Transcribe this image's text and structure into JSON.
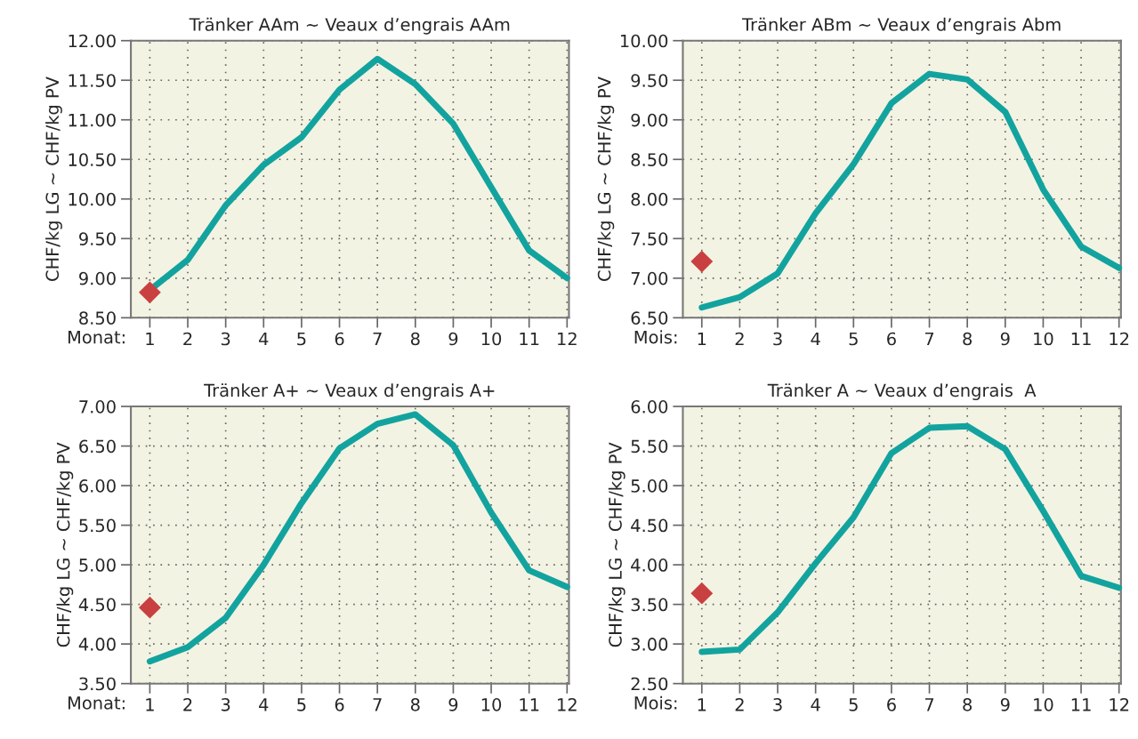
{
  "chart_data": [
    {
      "type": "line",
      "title": "Tränker AAm ~ Veaux d’engrais AAm",
      "xlabel": "Monat:",
      "ylabel": "CHF/kg LG ~ CHF/kg PV",
      "categories": [
        "1",
        "2",
        "3",
        "4",
        "5",
        "6",
        "7",
        "8",
        "9",
        "10",
        "11",
        "12"
      ],
      "series": [
        {
          "color": "#13a39f",
          "values": [
            8.85,
            9.23,
            9.92,
            10.43,
            10.78,
            11.38,
            11.77,
            11.45,
            10.95,
            10.15,
            9.35,
            9.0
          ]
        },
        {
          "type": "scatter",
          "color": "#c94040",
          "marker": "diamond",
          "x": [
            "1"
          ],
          "values": [
            8.82
          ]
        }
      ],
      "ylim": [
        8.5,
        12.0
      ],
      "yticks": [
        {
          "value": 8.5,
          "label": "8.50"
        },
        {
          "value": 9.0,
          "label": "9.00"
        },
        {
          "value": 9.5,
          "label": "9.50"
        },
        {
          "value": 10.0,
          "label": "10.00"
        },
        {
          "value": 10.5,
          "label": "10.50"
        },
        {
          "value": 11.0,
          "label": "11.00"
        },
        {
          "value": 11.5,
          "label": "11.50"
        },
        {
          "value": 12.0,
          "label": "12.00"
        }
      ],
      "grid": true,
      "legend": false
    },
    {
      "type": "line",
      "title": "Tränker ABm ~ Veaux d’engrais Abm",
      "xlabel": "Mois:",
      "ylabel": "CHF/kg LG ~ CHF/kg PV",
      "categories": [
        "1",
        "2",
        "3",
        "4",
        "5",
        "6",
        "7",
        "8",
        "9",
        "10",
        "11",
        "12"
      ],
      "series": [
        {
          "color": "#13a39f",
          "values": [
            6.63,
            6.76,
            7.06,
            7.82,
            8.44,
            9.21,
            9.58,
            9.51,
            9.1,
            8.12,
            7.4,
            7.13
          ]
        },
        {
          "type": "scatter",
          "color": "#c94040",
          "marker": "diamond",
          "x": [
            "1"
          ],
          "values": [
            7.21
          ]
        }
      ],
      "ylim": [
        6.5,
        10.0
      ],
      "yticks": [
        {
          "value": 6.5,
          "label": "6.50"
        },
        {
          "value": 7.0,
          "label": "7.00"
        },
        {
          "value": 7.5,
          "label": "7.50"
        },
        {
          "value": 8.0,
          "label": "8.00"
        },
        {
          "value": 8.5,
          "label": "8.50"
        },
        {
          "value": 9.0,
          "label": "9.00"
        },
        {
          "value": 9.5,
          "label": "9.50"
        },
        {
          "value": 10.0,
          "label": "10.00"
        }
      ],
      "grid": true,
      "legend": false
    },
    {
      "type": "line",
      "title": "Tränker A+ ~ Veaux d’engrais A+",
      "xlabel": "Monat:",
      "ylabel": "CHF/kg LG ~ CHF/kg PV",
      "categories": [
        "1",
        "2",
        "3",
        "4",
        "5",
        "6",
        "7",
        "8",
        "9",
        "10",
        "11",
        "12"
      ],
      "series": [
        {
          "color": "#13a39f",
          "values": [
            3.78,
            3.96,
            4.33,
            5.0,
            5.78,
            6.47,
            6.78,
            6.9,
            6.51,
            5.66,
            4.93,
            4.72
          ]
        },
        {
          "type": "scatter",
          "color": "#c94040",
          "marker": "diamond",
          "x": [
            "1"
          ],
          "values": [
            4.46
          ]
        }
      ],
      "ylim": [
        3.5,
        7.0
      ],
      "yticks": [
        {
          "value": 3.5,
          "label": "3.50"
        },
        {
          "value": 4.0,
          "label": "4.00"
        },
        {
          "value": 4.5,
          "label": "4.50"
        },
        {
          "value": 5.0,
          "label": "5.00"
        },
        {
          "value": 5.5,
          "label": "5.50"
        },
        {
          "value": 6.0,
          "label": "6.00"
        },
        {
          "value": 6.5,
          "label": "6.50"
        },
        {
          "value": 7.0,
          "label": "7.00"
        }
      ],
      "grid": true,
      "legend": false
    },
    {
      "type": "line",
      "title": "Tränker A ~ Veaux d’engrais  A",
      "xlabel": "Mois:",
      "ylabel": "CHF/kg LG ~ CHF/kg PV",
      "categories": [
        "1",
        "2",
        "3",
        "4",
        "5",
        "6",
        "7",
        "8",
        "9",
        "10",
        "11",
        "12"
      ],
      "series": [
        {
          "color": "#13a39f",
          "values": [
            2.9,
            2.93,
            3.4,
            4.02,
            4.6,
            5.41,
            5.73,
            5.75,
            5.46,
            4.68,
            3.86,
            3.71
          ]
        },
        {
          "type": "scatter",
          "color": "#c94040",
          "marker": "diamond",
          "x": [
            "1"
          ],
          "values": [
            3.64
          ]
        }
      ],
      "ylim": [
        2.5,
        6.0
      ],
      "yticks": [
        {
          "value": 2.5,
          "label": "2.50"
        },
        {
          "value": 3.0,
          "label": "3.00"
        },
        {
          "value": 3.5,
          "label": "3.50"
        },
        {
          "value": 4.0,
          "label": "4.00"
        },
        {
          "value": 4.5,
          "label": "4.50"
        },
        {
          "value": 5.0,
          "label": "5.00"
        },
        {
          "value": 5.5,
          "label": "5.50"
        },
        {
          "value": 6.0,
          "label": "6.00"
        }
      ],
      "grid": true,
      "legend": false
    }
  ]
}
